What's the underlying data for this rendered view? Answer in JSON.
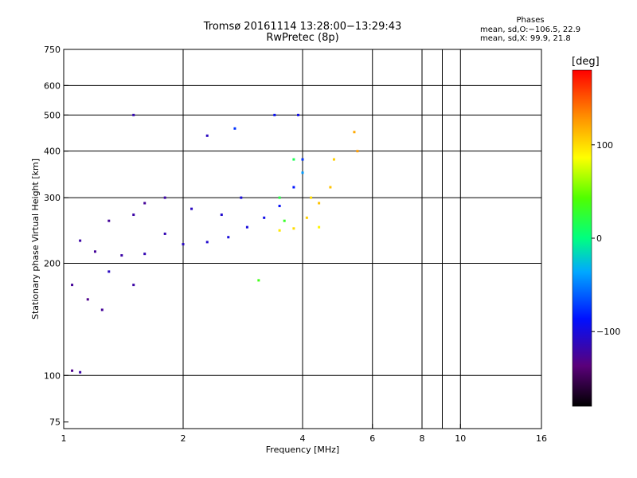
{
  "chart_data": {
    "type": "scatter",
    "title": "Tromsø 20161114 13:28:00−13:29:43",
    "subtitle": "RwPretec (8p)",
    "xlabel": "Frequency [MHz]",
    "ylabel": "Stationary phase Virtual Height [km]",
    "x_scale": "log",
    "y_scale": "log",
    "xlim": [
      1,
      16
    ],
    "ylim": [
      72,
      750
    ],
    "x_ticks": [
      1,
      2,
      4,
      6,
      8,
      10,
      16
    ],
    "x_tick_labels": [
      "1",
      "2",
      "4",
      "6",
      "8",
      "10",
      "16"
    ],
    "x_grid": [
      1,
      2,
      4,
      6,
      8,
      9,
      10,
      16
    ],
    "y_ticks": [
      75,
      100,
      200,
      300,
      400,
      500,
      600,
      750
    ],
    "y_tick_labels": [
      "75",
      "100",
      "200",
      "300",
      "400",
      "500",
      "600",
      "750"
    ],
    "y_grid": [
      100,
      200,
      300,
      400,
      500,
      600
    ],
    "grid": true,
    "color_variable": "Phase",
    "colorbar": {
      "unit": "[deg]",
      "range": [
        -180,
        180
      ],
      "ticks": [
        100,
        0,
        -100
      ],
      "tick_labels": [
        "100",
        "0",
        "−100"
      ]
    },
    "stats": {
      "heading": "Phases",
      "line1": "mean, sd,O:−106.5, 22.9",
      "line2": "mean, sd,X:  99.9, 21.8"
    },
    "series": [
      {
        "mode": "O",
        "points": [
          {
            "x": 1.05,
            "y": 103,
            "phase": -130
          },
          {
            "x": 1.1,
            "y": 102,
            "phase": -120
          },
          {
            "x": 1.05,
            "y": 175,
            "phase": -125
          },
          {
            "x": 1.15,
            "y": 160,
            "phase": -130
          },
          {
            "x": 1.25,
            "y": 150,
            "phase": -125
          },
          {
            "x": 1.1,
            "y": 230,
            "phase": -120
          },
          {
            "x": 1.2,
            "y": 215,
            "phase": -125
          },
          {
            "x": 1.4,
            "y": 210,
            "phase": -120
          },
          {
            "x": 1.6,
            "y": 212,
            "phase": -115
          },
          {
            "x": 1.3,
            "y": 260,
            "phase": -125
          },
          {
            "x": 1.5,
            "y": 270,
            "phase": -120
          },
          {
            "x": 1.8,
            "y": 240,
            "phase": -115
          },
          {
            "x": 2.0,
            "y": 225,
            "phase": -110
          },
          {
            "x": 2.3,
            "y": 228,
            "phase": -105
          },
          {
            "x": 2.6,
            "y": 235,
            "phase": -100
          },
          {
            "x": 2.9,
            "y": 250,
            "phase": -100
          },
          {
            "x": 3.2,
            "y": 265,
            "phase": -95
          },
          {
            "x": 3.5,
            "y": 285,
            "phase": -90
          },
          {
            "x": 3.8,
            "y": 320,
            "phase": -85
          },
          {
            "x": 4.0,
            "y": 380,
            "phase": -75
          },
          {
            "x": 1.6,
            "y": 290,
            "phase": -125
          },
          {
            "x": 1.8,
            "y": 300,
            "phase": -120
          },
          {
            "x": 2.1,
            "y": 280,
            "phase": -110
          },
          {
            "x": 2.5,
            "y": 270,
            "phase": -105
          },
          {
            "x": 2.8,
            "y": 300,
            "phase": -100
          },
          {
            "x": 1.5,
            "y": 500,
            "phase": -115
          },
          {
            "x": 2.3,
            "y": 440,
            "phase": -110
          },
          {
            "x": 2.7,
            "y": 460,
            "phase": -75
          },
          {
            "x": 3.4,
            "y": 500,
            "phase": -90
          },
          {
            "x": 3.9,
            "y": 500,
            "phase": -95
          },
          {
            "x": 1.5,
            "y": 175,
            "phase": -120
          },
          {
            "x": 1.3,
            "y": 190,
            "phase": -110
          },
          {
            "x": 3.1,
            "y": 180,
            "phase": 35
          },
          {
            "x": 3.5,
            "y": 300,
            "phase": 20
          },
          {
            "x": 3.6,
            "y": 260,
            "phase": 30
          },
          {
            "x": 4.0,
            "y": 350,
            "phase": -40
          },
          {
            "x": 3.8,
            "y": 380,
            "phase": 15
          }
        ]
      },
      {
        "mode": "X",
        "points": [
          {
            "x": 3.5,
            "y": 245,
            "phase": 95
          },
          {
            "x": 3.8,
            "y": 248,
            "phase": 100
          },
          {
            "x": 4.1,
            "y": 265,
            "phase": 105
          },
          {
            "x": 4.4,
            "y": 290,
            "phase": 110
          },
          {
            "x": 4.7,
            "y": 320,
            "phase": 110
          },
          {
            "x": 4.8,
            "y": 380,
            "phase": 105
          },
          {
            "x": 5.4,
            "y": 450,
            "phase": 120
          },
          {
            "x": 5.5,
            "y": 400,
            "phase": 125
          },
          {
            "x": 4.4,
            "y": 250,
            "phase": 90
          },
          {
            "x": 4.2,
            "y": 300,
            "phase": 100
          }
        ]
      }
    ]
  }
}
